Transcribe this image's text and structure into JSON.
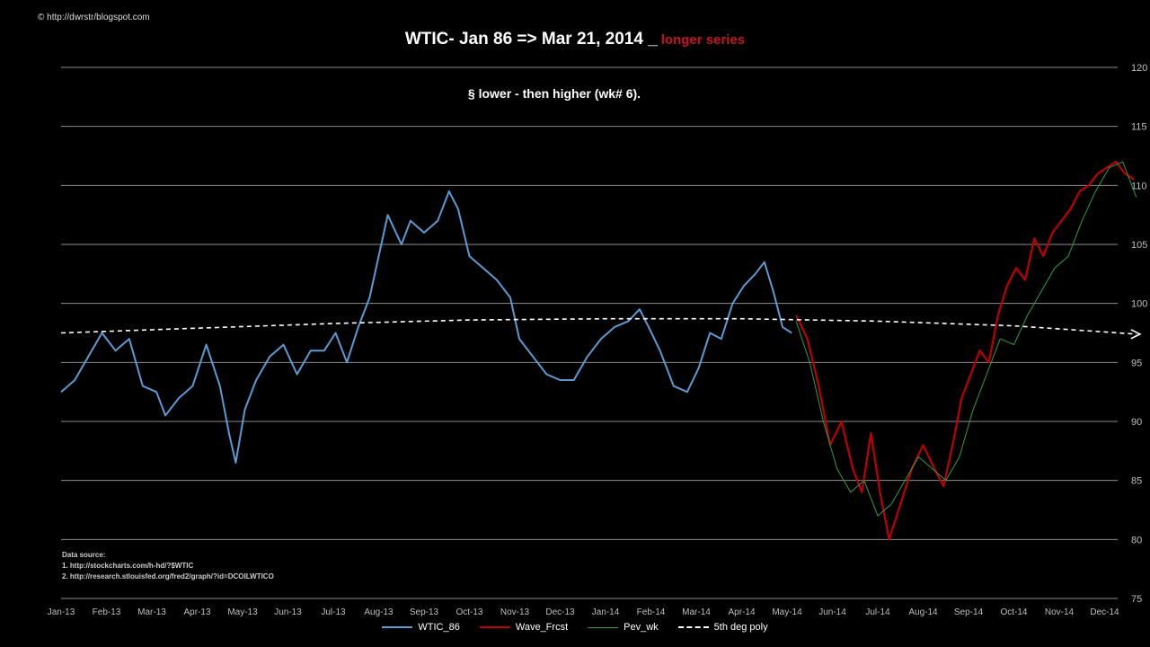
{
  "copyright": "© http://dwrstr/blogspot.com",
  "title": "WTIC-  Jan 86 => Mar 21, 2014 _",
  "title_sub": "longer series",
  "annotation": "§  lower - then higher  (wk# 6).",
  "source": {
    "heading": "Data source:",
    "lines": [
      "1. http://stockcharts.com/h-hd/?$WTIC",
      "2. http://research.stlouisfed.org/fred2/graph/?id=DCOILWTICO"
    ]
  },
  "chart_data": {
    "type": "line",
    "ylim": [
      75,
      120
    ],
    "y_ticks": [
      75,
      80,
      85,
      90,
      95,
      100,
      105,
      110,
      115,
      120
    ],
    "x_ticks": [
      "Jan-13",
      "Feb-13",
      "Mar-13",
      "Apr-13",
      "May-13",
      "Jun-13",
      "Jul-13",
      "Aug-13",
      "Sep-13",
      "Oct-13",
      "Nov-13",
      "Dec-13",
      "Jan-14",
      "Feb-14",
      "Mar-14",
      "Apr-14",
      "May-14",
      "Jun-14",
      "Jul-14",
      "Aug-14",
      "Sep-14",
      "Oct-14",
      "Nov-14",
      "Dec-14"
    ],
    "x_range": [
      0,
      23.7
    ],
    "grid": true,
    "legend": "bottom",
    "series": [
      {
        "name": "WTIC_86",
        "color": "#5b9bd5",
        "points": [
          [
            0,
            92.5
          ],
          [
            0.3,
            93.5
          ],
          [
            0.6,
            95.5
          ],
          [
            0.9,
            97.5
          ],
          [
            1.2,
            96
          ],
          [
            1.5,
            97
          ],
          [
            1.8,
            93
          ],
          [
            2.1,
            92.5
          ],
          [
            2.3,
            90.5
          ],
          [
            2.6,
            92
          ],
          [
            2.9,
            93
          ],
          [
            3.2,
            96.5
          ],
          [
            3.5,
            93
          ],
          [
            3.7,
            89
          ],
          [
            3.85,
            86.5
          ],
          [
            4.05,
            91
          ],
          [
            4.3,
            93.5
          ],
          [
            4.6,
            95.5
          ],
          [
            4.9,
            96.5
          ],
          [
            5.2,
            94
          ],
          [
            5.5,
            96
          ],
          [
            5.8,
            96
          ],
          [
            6.05,
            97.5
          ],
          [
            6.3,
            95
          ],
          [
            6.55,
            98
          ],
          [
            6.8,
            100.5
          ],
          [
            7.0,
            104
          ],
          [
            7.2,
            107.5
          ],
          [
            7.5,
            105
          ],
          [
            7.7,
            107
          ],
          [
            8.0,
            106
          ],
          [
            8.3,
            107
          ],
          [
            8.55,
            109.5
          ],
          [
            8.75,
            108
          ],
          [
            9.0,
            104
          ],
          [
            9.3,
            103
          ],
          [
            9.6,
            102
          ],
          [
            9.9,
            100.5
          ],
          [
            10.1,
            97
          ],
          [
            10.4,
            95.5
          ],
          [
            10.7,
            94
          ],
          [
            11.0,
            93.5
          ],
          [
            11.3,
            93.5
          ],
          [
            11.6,
            95.5
          ],
          [
            11.9,
            97
          ],
          [
            12.2,
            98
          ],
          [
            12.5,
            98.5
          ],
          [
            12.75,
            99.5
          ],
          [
            12.95,
            98
          ],
          [
            13.2,
            96
          ],
          [
            13.5,
            93
          ],
          [
            13.8,
            92.5
          ],
          [
            14.05,
            94.5
          ],
          [
            14.3,
            97.5
          ],
          [
            14.55,
            97
          ],
          [
            14.8,
            100
          ],
          [
            15.05,
            101.5
          ],
          [
            15.3,
            102.5
          ],
          [
            15.5,
            103.5
          ],
          [
            15.7,
            101
          ],
          [
            15.9,
            98
          ],
          [
            16.1,
            97.5
          ]
        ]
      },
      {
        "name": "Wave_Frcst",
        "color": "#c00000",
        "points": [
          [
            16.2,
            99
          ],
          [
            16.45,
            97
          ],
          [
            16.7,
            93
          ],
          [
            16.95,
            88
          ],
          [
            17.2,
            90
          ],
          [
            17.45,
            86
          ],
          [
            17.65,
            84
          ],
          [
            17.85,
            89
          ],
          [
            18.05,
            84
          ],
          [
            18.25,
            80
          ],
          [
            18.5,
            83
          ],
          [
            18.75,
            86
          ],
          [
            19.0,
            88
          ],
          [
            19.25,
            86
          ],
          [
            19.45,
            84.5
          ],
          [
            19.65,
            88
          ],
          [
            19.85,
            92
          ],
          [
            20.05,
            94
          ],
          [
            20.25,
            96
          ],
          [
            20.45,
            95
          ],
          [
            20.65,
            99
          ],
          [
            20.85,
            101.5
          ],
          [
            21.05,
            103
          ],
          [
            21.25,
            102
          ],
          [
            21.45,
            105.5
          ],
          [
            21.65,
            104
          ],
          [
            21.85,
            106
          ],
          [
            22.05,
            107
          ],
          [
            22.25,
            108
          ],
          [
            22.45,
            109.5
          ],
          [
            22.65,
            110
          ],
          [
            22.85,
            111
          ],
          [
            23.05,
            111.5
          ],
          [
            23.25,
            112
          ],
          [
            23.45,
            111
          ],
          [
            23.65,
            110.5
          ]
        ]
      },
      {
        "name": "Pev_wk",
        "color": "#2ea043",
        "points": [
          [
            16.2,
            98.5
          ],
          [
            16.5,
            95
          ],
          [
            16.8,
            90
          ],
          [
            17.1,
            86
          ],
          [
            17.4,
            84
          ],
          [
            17.7,
            85
          ],
          [
            18.0,
            82
          ],
          [
            18.3,
            83
          ],
          [
            18.6,
            85
          ],
          [
            18.9,
            87
          ],
          [
            19.2,
            86
          ],
          [
            19.5,
            85
          ],
          [
            19.8,
            87
          ],
          [
            20.1,
            91
          ],
          [
            20.4,
            94
          ],
          [
            20.7,
            97
          ],
          [
            21.0,
            96.5
          ],
          [
            21.3,
            99
          ],
          [
            21.6,
            101
          ],
          [
            21.9,
            103
          ],
          [
            22.2,
            104
          ],
          [
            22.5,
            107
          ],
          [
            22.8,
            109.5
          ],
          [
            23.1,
            111.5
          ],
          [
            23.4,
            112
          ],
          [
            23.7,
            109
          ]
        ]
      },
      {
        "name": "5th deg poly",
        "color": "#ffffff",
        "points": [
          [
            0,
            97.5
          ],
          [
            3,
            97.9
          ],
          [
            6,
            98.3
          ],
          [
            9,
            98.6
          ],
          [
            12,
            98.7
          ],
          [
            15,
            98.7
          ],
          [
            18,
            98.5
          ],
          [
            21,
            98.1
          ],
          [
            23.7,
            97.4
          ]
        ]
      }
    ]
  }
}
